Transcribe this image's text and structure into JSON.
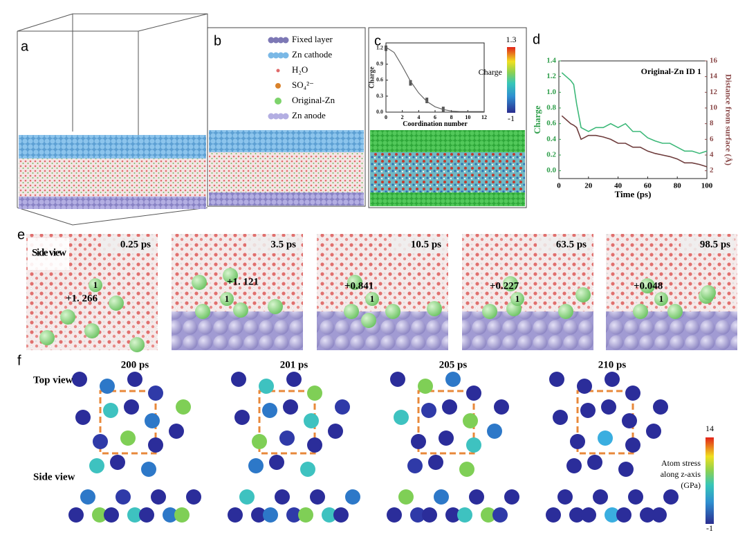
{
  "panel_letters": [
    "a",
    "b",
    "c",
    "d",
    "e",
    "f"
  ],
  "legend_b": [
    "Fixed layer",
    "Zn cathode",
    "H₂O",
    "SO₄²⁻",
    "Original-Zn",
    "Zn anode"
  ],
  "chart_data": [
    {
      "type": "scatter",
      "xlabel": "Coordination number",
      "ylabel": "Charge",
      "xlim": [
        0,
        12
      ],
      "ylim": [
        0,
        1.3
      ],
      "xticks": [
        0,
        2,
        4,
        6,
        8,
        10,
        12
      ],
      "yticks": [
        {
          "value": 0,
          "label": "0.0"
        },
        0.3,
        0.6,
        0.9,
        1.2
      ],
      "series": [
        {
          "mode": "markers",
          "color": "#555555",
          "x": [
            0,
            3,
            5,
            7
          ],
          "values": [
            1.2,
            0.55,
            0.22,
            0.05
          ]
        },
        {
          "mode": "line",
          "color": "#666666",
          "x": [
            0,
            1,
            2,
            3,
            4,
            5,
            6,
            7,
            8,
            9,
            10,
            11,
            12
          ],
          "values": [
            1.22,
            1.12,
            0.86,
            0.58,
            0.36,
            0.2,
            0.1,
            0.05,
            0.02,
            0.01,
            0.01,
            0.01,
            0.01
          ]
        }
      ],
      "colorbar": {
        "max": 1.3,
        "min": -1,
        "label": "Charge"
      }
    },
    {
      "type": "line",
      "title": "Original-Zn ID 1",
      "xlabel": "Time (ps)",
      "ylabel": "Charge",
      "y2label": "Distance from surface (Å)",
      "xlim": [
        0,
        100
      ],
      "ylim": [
        -0.1,
        1.4
      ],
      "y2lim": [
        1,
        16
      ],
      "xticks": [
        0,
        20,
        40,
        60,
        80,
        100
      ],
      "yticks": [
        {
          "value": 0,
          "label": "0.0"
        },
        0.2,
        0.4,
        0.6,
        0.8,
        {
          "value": 1,
          "label": "1.0"
        },
        1.2,
        1.4
      ],
      "y2ticks": [
        2,
        4,
        6,
        8,
        10,
        12,
        14,
        16
      ],
      "x": [
        2,
        5,
        8,
        10,
        12,
        15,
        20,
        25,
        30,
        35,
        40,
        45,
        50,
        55,
        60,
        65,
        70,
        75,
        80,
        85,
        90,
        95,
        100
      ],
      "series": [
        {
          "name": "Charge",
          "color": "#3cb878",
          "values": [
            1.25,
            1.2,
            1.15,
            1.1,
            0.85,
            0.55,
            0.5,
            0.55,
            0.55,
            0.6,
            0.55,
            0.6,
            0.5,
            0.5,
            0.42,
            0.38,
            0.35,
            0.35,
            0.3,
            0.25,
            0.25,
            0.22,
            0.25
          ]
        },
        {
          "name": "Distance",
          "color": "#6e3c3c",
          "axis": "y2",
          "values": [
            9,
            8.5,
            8,
            7.8,
            7.5,
            6,
            6.5,
            6.5,
            6.3,
            6,
            5.5,
            5.5,
            5,
            5,
            4.5,
            4.2,
            4,
            3.8,
            3.5,
            3,
            3,
            2.8,
            2.5
          ]
        }
      ],
      "left_color": "#2e9e4a",
      "right_color": "#8b4a4a"
    }
  ],
  "panel_e": {
    "view_label": "Side view",
    "frames": [
      {
        "time": "0.25 ps",
        "charge": "+1. 266",
        "atom": "1"
      },
      {
        "time": "3.5 ps",
        "charge": "+1. 121",
        "atom": "1"
      },
      {
        "time": "10.5 ps",
        "charge": "+0.841",
        "atom": "1"
      },
      {
        "time": "63.5 ps",
        "charge": "+0.227",
        "atom": "1"
      },
      {
        "time": "98.5 ps",
        "charge": "+0.048",
        "atom": "1"
      }
    ]
  },
  "panel_f": {
    "top_label": "Top view",
    "side_label": "Side view",
    "times": [
      "200 ps",
      "201 ps",
      "205 ps",
      "210 ps"
    ],
    "colorbar": {
      "max": 14,
      "min": -1,
      "label_lines": [
        "Atom stress",
        "along z-axis",
        "(GPa)"
      ]
    }
  }
}
